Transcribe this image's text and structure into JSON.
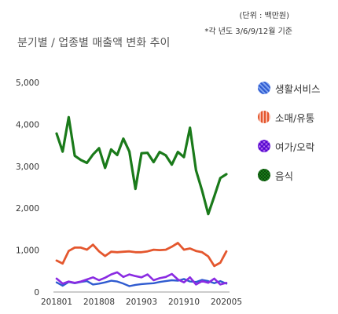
{
  "unit_note": "(단위 : 백만원)",
  "year_note": "*각 년도 3/6/9/12월 기준",
  "chart_data": {
    "type": "line",
    "title": "분기별 / 업종별 매출액 변화 추이",
    "xlabel": "",
    "ylabel": "",
    "ylim": [
      0,
      5000
    ],
    "yticks": [
      0,
      1000,
      2000,
      3000,
      4000,
      5000
    ],
    "y_tick_labels": [
      "0",
      "1,000",
      "2,000",
      "3,000",
      "4,000",
      "5,000"
    ],
    "x_tick_labels": [
      "201801",
      "201808",
      "201903",
      "201910",
      "202005"
    ],
    "x_tick_index": [
      0,
      7,
      14,
      21,
      28
    ],
    "grid": false,
    "legend_position": "right",
    "x": [
      "201801",
      "201802",
      "201803",
      "201804",
      "201805",
      "201806",
      "201807",
      "201808",
      "201809",
      "201810",
      "201811",
      "201812",
      "201901",
      "201902",
      "201903",
      "201904",
      "201905",
      "201906",
      "201907",
      "201908",
      "201909",
      "201910",
      "201911",
      "201912",
      "202001",
      "202002",
      "202003",
      "202004",
      "202005"
    ],
    "series": [
      {
        "name": "생활서비스",
        "color": "#2f5bd0",
        "values": [
          230,
          150,
          240,
          210,
          240,
          260,
          180,
          200,
          230,
          270,
          250,
          200,
          140,
          170,
          190,
          200,
          210,
          240,
          260,
          280,
          270,
          310,
          250,
          240,
          290,
          260,
          210,
          260,
          200
        ]
      },
      {
        "name": "소매/유통",
        "color": "#e4572e",
        "values": [
          750,
          680,
          980,
          1060,
          1060,
          1010,
          1130,
          970,
          860,
          960,
          950,
          960,
          970,
          950,
          950,
          970,
          1010,
          1000,
          1010,
          1080,
          1170,
          1010,
          1040,
          980,
          950,
          850,
          620,
          700,
          970
        ]
      },
      {
        "name": "여가/오락",
        "color": "#8a2be2",
        "values": [
          320,
          200,
          250,
          220,
          250,
          300,
          350,
          280,
          340,
          420,
          470,
          360,
          420,
          380,
          350,
          420,
          280,
          330,
          360,
          430,
          300,
          230,
          350,
          180,
          260,
          220,
          320,
          180,
          220
        ]
      },
      {
        "name": "음식",
        "color": "#1a7a1a",
        "values": [
          3780,
          3350,
          4170,
          3250,
          3150,
          3080,
          3280,
          3430,
          2960,
          3400,
          3270,
          3660,
          3350,
          2460,
          3310,
          3320,
          3100,
          3340,
          3260,
          3040,
          3340,
          3220,
          3920,
          2900,
          2420,
          1860,
          2280,
          2720,
          2810
        ]
      }
    ]
  }
}
